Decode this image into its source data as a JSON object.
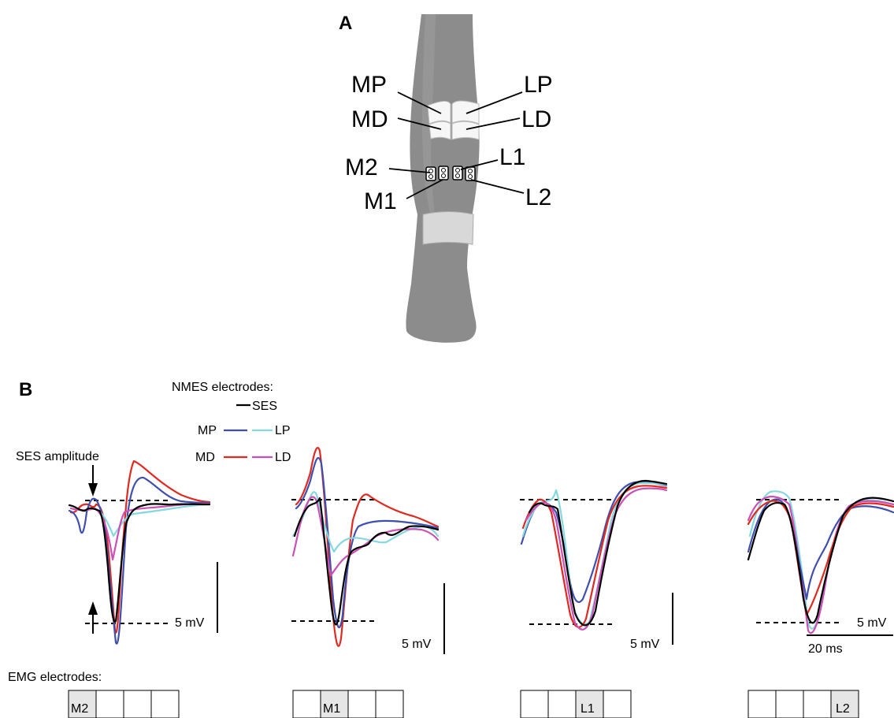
{
  "panel_a": {
    "label": "A",
    "electrodes": {
      "mp": "MP",
      "md": "MD",
      "lp": "LP",
      "ld": "LD",
      "m2": "M2",
      "m1": "M1",
      "l1": "L1",
      "l2": "L2"
    }
  },
  "panel_b": {
    "label": "B",
    "legend_title": "NMES electrodes:",
    "legend": {
      "ses": "SES",
      "mp": "MP",
      "lp": "LP",
      "md": "MD",
      "ld": "LD"
    },
    "ses_amplitude_label": "SES amplitude",
    "scale_labels": [
      "5 mV",
      "5 mV",
      "5 mV",
      "5 mV"
    ],
    "time_scale_label": "20 ms",
    "emg_title": "EMG electrodes:",
    "emg_groups": [
      {
        "highlight_index": 0,
        "label": "M2"
      },
      {
        "highlight_index": 1,
        "label": "M1"
      },
      {
        "highlight_index": 2,
        "label": "L1"
      },
      {
        "highlight_index": 3,
        "label": "L2"
      }
    ]
  },
  "colors": {
    "SES": "#000000",
    "MP": "#3f4fb0",
    "LP": "#86d8e0",
    "MD": "#e02a20",
    "LD": "#cc4fb5"
  }
}
